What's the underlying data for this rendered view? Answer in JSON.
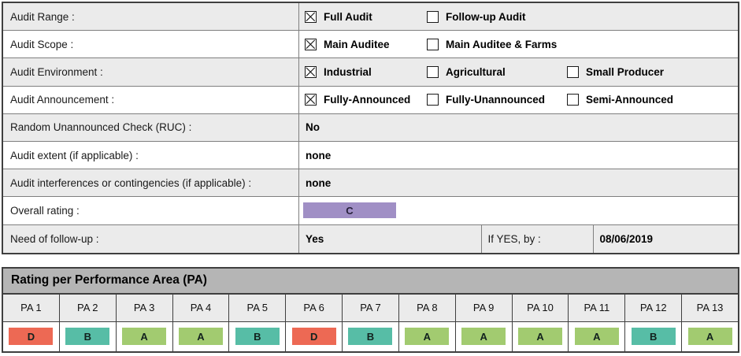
{
  "colors": {
    "stripe": "#ebebeb",
    "header_bar": "#b5b5b5",
    "overall_rating_bg": "#a08fc5",
    "grade_D": "#ed6954",
    "grade_B": "#57bda6",
    "grade_A": "#a2cb70"
  },
  "form": {
    "rows": [
      {
        "label": "Audit Range :",
        "type": "checkboxes",
        "options": [
          {
            "label": "Full Audit",
            "checked": true
          },
          {
            "label": "Follow-up Audit",
            "checked": false
          }
        ]
      },
      {
        "label": "Audit Scope :",
        "type": "checkboxes",
        "options": [
          {
            "label": "Main Auditee",
            "checked": true
          },
          {
            "label": "Main Auditee & Farms",
            "checked": false
          }
        ]
      },
      {
        "label": "Audit Environment :",
        "type": "checkboxes",
        "options": [
          {
            "label": "Industrial",
            "checked": true
          },
          {
            "label": "Agricultural",
            "checked": false
          },
          {
            "label": "Small Producer",
            "checked": false
          }
        ]
      },
      {
        "label": "Audit Announcement :",
        "type": "checkboxes",
        "options": [
          {
            "label": "Fully-Announced",
            "checked": true
          },
          {
            "label": "Fully-Unannounced",
            "checked": false
          },
          {
            "label": "Semi-Announced",
            "checked": false
          }
        ]
      },
      {
        "label": "Random Unannounced Check (RUC) :",
        "type": "value",
        "value": "No"
      },
      {
        "label": "Audit extent (if applicable) :",
        "type": "value",
        "value": "none"
      },
      {
        "label": "Audit interferences or contingencies (if applicable) :",
        "type": "value",
        "value": "none"
      },
      {
        "label": "Overall rating :",
        "type": "rating",
        "value": "C"
      },
      {
        "label": "Need of follow-up :",
        "type": "followup",
        "value": "Yes",
        "extra_label": "If YES, by :",
        "extra_value": "08/06/2019"
      }
    ]
  },
  "pa_section": {
    "title": "Rating per Performance Area (PA)",
    "areas": [
      {
        "label": "PA 1",
        "grade": "D"
      },
      {
        "label": "PA 2",
        "grade": "B"
      },
      {
        "label": "PA 3",
        "grade": "A"
      },
      {
        "label": "PA 4",
        "grade": "A"
      },
      {
        "label": "PA 5",
        "grade": "B"
      },
      {
        "label": "PA 6",
        "grade": "D"
      },
      {
        "label": "PA 7",
        "grade": "B"
      },
      {
        "label": "PA 8",
        "grade": "A"
      },
      {
        "label": "PA 9",
        "grade": "A"
      },
      {
        "label": "PA 10",
        "grade": "A"
      },
      {
        "label": "PA 11",
        "grade": "A"
      },
      {
        "label": "PA 12",
        "grade": "B"
      },
      {
        "label": "PA 13",
        "grade": "A"
      }
    ]
  }
}
